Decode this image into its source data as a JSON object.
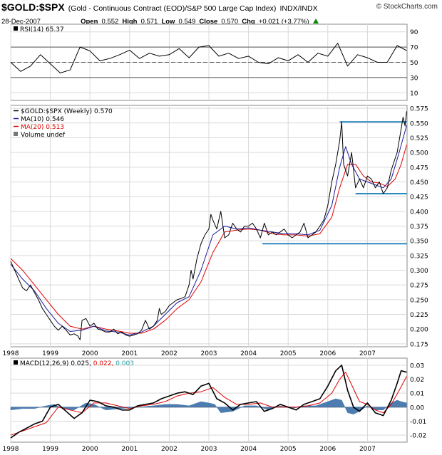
{
  "header": {
    "symbol": "$GOLD:$SPX",
    "description": "(Gold - Continuous Contract (EOD)/S&P 500 Large Cap Index)",
    "exchange": "INDX/INDX",
    "date": "28-Dec-2007",
    "open_label": "Open",
    "open": "0.552",
    "high_label": "High",
    "high": "0.571",
    "low_label": "Low",
    "low": "0.549",
    "close_label": "Close",
    "close": "0.570",
    "chg_label": "Chg",
    "chg": "+0.021 (+3.77%)",
    "watermark": "© StockCharts.com",
    "chg_arrow_color": "#0a8a0a"
  },
  "colors": {
    "price": "#000000",
    "ma10": "#1a1aa0",
    "ma20": "#e00000",
    "hline": "#2e8bc0",
    "histogram": "#3a6fa8",
    "macd_signal": "#e00000",
    "hist_text": "#2aa0a0",
    "grid": "#d9d9d9"
  },
  "chart_data": [
    {
      "type": "line",
      "panel": "rsi",
      "legend": "RSI(14) 65.37",
      "ylim": [
        0,
        100
      ],
      "ticks": [
        10,
        30,
        50,
        70,
        90
      ],
      "reference_lines": [
        30,
        50,
        70
      ],
      "series": [
        {
          "name": "RSI(14)",
          "last": 65.37,
          "x": [
            1998.0,
            1998.25,
            1998.5,
            1998.75,
            1999.0,
            1999.25,
            1999.5,
            1999.75,
            2000.0,
            2000.25,
            2000.5,
            2000.75,
            2001.0,
            2001.25,
            2001.5,
            2001.75,
            2002.0,
            2002.25,
            2002.5,
            2002.75,
            2003.0,
            2003.25,
            2003.5,
            2003.75,
            2004.0,
            2004.25,
            2004.5,
            2004.75,
            2005.0,
            2005.25,
            2005.5,
            2005.75,
            2006.0,
            2006.25,
            2006.5,
            2006.75,
            2007.0,
            2007.25,
            2007.5,
            2007.75,
            2007.99
          ],
          "values": [
            50,
            38,
            45,
            60,
            48,
            36,
            40,
            70,
            65,
            52,
            55,
            60,
            66,
            55,
            62,
            58,
            60,
            68,
            56,
            70,
            72,
            58,
            62,
            55,
            58,
            50,
            48,
            56,
            52,
            60,
            50,
            62,
            58,
            75,
            45,
            60,
            56,
            50,
            50,
            72,
            65.37
          ]
        }
      ]
    },
    {
      "type": "line",
      "panel": "price",
      "ylim": [
        0.17,
        0.58
      ],
      "ticks": [
        0.175,
        0.2,
        0.225,
        0.25,
        0.275,
        0.3,
        0.325,
        0.35,
        0.375,
        0.4,
        0.425,
        0.45,
        0.475,
        0.5,
        0.525,
        0.55,
        0.575
      ],
      "x_ticks": [
        "1998",
        "1999",
        "2000",
        "2001",
        "2002",
        "2003",
        "2004",
        "2005",
        "2006",
        "2007"
      ],
      "x_tick_positions": [
        1998,
        1999,
        2000,
        2001,
        2002,
        2003,
        2004,
        2005,
        2006,
        2007
      ],
      "xlim": [
        1998.0,
        2008.0
      ],
      "legend": [
        {
          "label": "$GOLD:$SPX (Weekly) 0.570",
          "color": "#000000"
        },
        {
          "label": "MA(10) 0.546",
          "color": "#1a1aa0"
        },
        {
          "label": "MA(20) 0.513",
          "color": "#e00000"
        },
        {
          "label": "Volume undef",
          "color": "#555555"
        }
      ],
      "horizontal_lines": [
        {
          "y": 0.552,
          "x_from": 2006.3,
          "x_to": 2008.0
        },
        {
          "y": 0.43,
          "x_from": 2006.7,
          "x_to": 2008.0
        },
        {
          "y": 0.345,
          "x_from": 2004.35,
          "x_to": 2008.0
        }
      ],
      "series": [
        {
          "name": "$GOLD:$SPX (Weekly)",
          "last": 0.57,
          "x": [
            1998.0,
            1998.1,
            1998.2,
            1998.3,
            1998.4,
            1998.5,
            1998.6,
            1998.7,
            1998.8,
            1998.9,
            1999.0,
            1999.1,
            1999.2,
            1999.3,
            1999.4,
            1999.5,
            1999.6,
            1999.7,
            1999.75,
            1999.8,
            1999.9,
            2000.0,
            2000.1,
            2000.2,
            2000.3,
            2000.4,
            2000.5,
            2000.6,
            2000.7,
            2000.8,
            2000.9,
            2001.0,
            2001.1,
            2001.2,
            2001.3,
            2001.4,
            2001.5,
            2001.6,
            2001.7,
            2001.75,
            2001.8,
            2001.9,
            2002.0,
            2002.1,
            2002.2,
            2002.3,
            2002.4,
            2002.5,
            2002.55,
            2002.6,
            2002.7,
            2002.8,
            2002.9,
            2003.0,
            2003.05,
            2003.1,
            2003.2,
            2003.3,
            2003.4,
            2003.5,
            2003.6,
            2003.7,
            2003.8,
            2003.9,
            2004.0,
            2004.1,
            2004.2,
            2004.3,
            2004.4,
            2004.5,
            2004.6,
            2004.7,
            2004.8,
            2004.9,
            2005.0,
            2005.1,
            2005.2,
            2005.3,
            2005.4,
            2005.5,
            2005.6,
            2005.7,
            2005.8,
            2005.9,
            2006.0,
            2006.1,
            2006.2,
            2006.3,
            2006.35,
            2006.4,
            2006.5,
            2006.6,
            2006.7,
            2006.8,
            2006.9,
            2007.0,
            2007.1,
            2007.2,
            2007.3,
            2007.4,
            2007.5,
            2007.6,
            2007.7,
            2007.75,
            2007.8,
            2007.85,
            2007.9,
            2007.95,
            2007.99
          ],
          "values": [
            0.315,
            0.3,
            0.285,
            0.27,
            0.265,
            0.275,
            0.262,
            0.25,
            0.235,
            0.225,
            0.215,
            0.205,
            0.198,
            0.205,
            0.198,
            0.19,
            0.192,
            0.188,
            0.182,
            0.215,
            0.218,
            0.205,
            0.21,
            0.2,
            0.198,
            0.195,
            0.195,
            0.2,
            0.192,
            0.195,
            0.19,
            0.188,
            0.19,
            0.192,
            0.198,
            0.215,
            0.2,
            0.205,
            0.215,
            0.235,
            0.225,
            0.23,
            0.24,
            0.245,
            0.25,
            0.252,
            0.255,
            0.275,
            0.3,
            0.285,
            0.32,
            0.345,
            0.36,
            0.37,
            0.395,
            0.385,
            0.37,
            0.4,
            0.355,
            0.36,
            0.38,
            0.37,
            0.365,
            0.375,
            0.375,
            0.38,
            0.37,
            0.355,
            0.38,
            0.36,
            0.365,
            0.36,
            0.365,
            0.37,
            0.36,
            0.355,
            0.36,
            0.365,
            0.38,
            0.355,
            0.36,
            0.365,
            0.375,
            0.385,
            0.41,
            0.45,
            0.48,
            0.52,
            0.552,
            0.48,
            0.46,
            0.5,
            0.44,
            0.455,
            0.44,
            0.46,
            0.455,
            0.44,
            0.45,
            0.43,
            0.44,
            0.47,
            0.49,
            0.5,
            0.52,
            0.54,
            0.56,
            0.545,
            0.57
          ]
        },
        {
          "name": "MA(10)",
          "last": 0.546,
          "x": [
            1998.0,
            1998.3,
            1998.6,
            1998.9,
            1999.2,
            1999.5,
            1999.8,
            2000.1,
            2000.4,
            2000.7,
            2001.0,
            2001.3,
            2001.6,
            2001.9,
            2002.2,
            2002.5,
            2002.8,
            2003.1,
            2003.4,
            2003.7,
            2004.0,
            2004.3,
            2004.6,
            2004.9,
            2005.2,
            2005.5,
            2005.8,
            2006.1,
            2006.3,
            2006.45,
            2006.6,
            2006.8,
            2007.0,
            2007.2,
            2007.4,
            2007.6,
            2007.8,
            2007.99
          ],
          "values": [
            0.31,
            0.285,
            0.265,
            0.235,
            0.21,
            0.196,
            0.198,
            0.205,
            0.197,
            0.195,
            0.19,
            0.195,
            0.205,
            0.225,
            0.245,
            0.255,
            0.3,
            0.36,
            0.375,
            0.37,
            0.372,
            0.368,
            0.365,
            0.362,
            0.362,
            0.36,
            0.368,
            0.41,
            0.475,
            0.51,
            0.48,
            0.455,
            0.45,
            0.445,
            0.44,
            0.455,
            0.5,
            0.546
          ]
        },
        {
          "name": "MA(20)",
          "last": 0.513,
          "x": [
            1998.0,
            1998.3,
            1998.6,
            1998.9,
            1999.2,
            1999.5,
            1999.8,
            2000.1,
            2000.4,
            2000.7,
            2001.0,
            2001.3,
            2001.6,
            2001.9,
            2002.2,
            2002.5,
            2002.8,
            2003.1,
            2003.4,
            2003.7,
            2004.0,
            2004.3,
            2004.6,
            2004.9,
            2005.2,
            2005.5,
            2005.8,
            2006.1,
            2006.3,
            2006.5,
            2006.7,
            2006.9,
            2007.1,
            2007.3,
            2007.5,
            2007.7,
            2007.85,
            2007.99
          ],
          "values": [
            0.32,
            0.3,
            0.275,
            0.25,
            0.225,
            0.205,
            0.2,
            0.205,
            0.2,
            0.197,
            0.193,
            0.193,
            0.2,
            0.215,
            0.235,
            0.25,
            0.28,
            0.33,
            0.365,
            0.368,
            0.37,
            0.368,
            0.362,
            0.36,
            0.36,
            0.358,
            0.362,
            0.39,
            0.44,
            0.48,
            0.48,
            0.46,
            0.45,
            0.448,
            0.442,
            0.455,
            0.48,
            0.513
          ]
        }
      ]
    },
    {
      "type": "line",
      "panel": "macd",
      "legend_name": "MACD(12,26,9)",
      "macd_value": "0.025,",
      "signal_value": "0.022,",
      "hist_value": "0.003",
      "ylim": [
        -0.025,
        0.035
      ],
      "ticks": [
        -0.02,
        -0.01,
        0.0,
        0.01,
        0.02,
        0.03
      ],
      "tick_labels": [
        "-0.02",
        "-0.01",
        "0.00",
        "0.01",
        "0.02",
        "0.03"
      ],
      "x_ticks": [
        "1998",
        "1999",
        "2000",
        "2001",
        "2002",
        "2003",
        "2004",
        "2005",
        "2006",
        "2007"
      ],
      "series": [
        {
          "name": "MACD",
          "last": 0.025,
          "x": [
            1998.0,
            1998.2,
            1998.4,
            1998.6,
            1998.8,
            1999.0,
            1999.2,
            1999.4,
            1999.6,
            1999.8,
            2000.0,
            2000.2,
            2000.4,
            2000.6,
            2000.8,
            2001.0,
            2001.2,
            2001.4,
            2001.6,
            2001.8,
            2002.0,
            2002.2,
            2002.4,
            2002.6,
            2002.8,
            2003.0,
            2003.2,
            2003.4,
            2003.6,
            2003.8,
            2004.0,
            2004.2,
            2004.4,
            2004.6,
            2004.8,
            2005.0,
            2005.2,
            2005.4,
            2005.6,
            2005.8,
            2006.0,
            2006.2,
            2006.35,
            2006.5,
            2006.65,
            2006.8,
            2007.0,
            2007.2,
            2007.4,
            2007.6,
            2007.75,
            2007.85,
            2007.99
          ],
          "values": [
            -0.022,
            -0.018,
            -0.015,
            -0.012,
            -0.01,
            0.0,
            0.002,
            -0.003,
            -0.008,
            -0.004,
            0.005,
            0.004,
            0.001,
            0.0,
            -0.002,
            -0.002,
            0.001,
            0.002,
            0.003,
            0.006,
            0.008,
            0.01,
            0.011,
            0.009,
            0.015,
            0.017,
            0.006,
            0.003,
            -0.002,
            0.002,
            0.003,
            0.004,
            -0.003,
            -0.001,
            0.002,
            0.0,
            -0.002,
            0.002,
            0.004,
            0.006,
            0.015,
            0.026,
            0.03,
            0.012,
            0.0,
            -0.003,
            0.003,
            -0.004,
            -0.006,
            0.005,
            0.017,
            0.026,
            0.025
          ]
        },
        {
          "name": "Signal",
          "last": 0.022,
          "x": [
            1998.0,
            1998.3,
            1998.6,
            1998.9,
            1999.2,
            1999.5,
            1999.8,
            2000.1,
            2000.4,
            2000.7,
            2001.0,
            2001.3,
            2001.6,
            2001.9,
            2002.2,
            2002.5,
            2002.8,
            2003.1,
            2003.4,
            2003.7,
            2004.0,
            2004.3,
            2004.6,
            2004.9,
            2005.2,
            2005.5,
            2005.8,
            2006.1,
            2006.3,
            2006.45,
            2006.6,
            2006.8,
            2007.0,
            2007.2,
            2007.4,
            2007.6,
            2007.8,
            2007.99
          ],
          "values": [
            -0.02,
            -0.017,
            -0.014,
            -0.011,
            0.0,
            -0.002,
            -0.004,
            0.003,
            0.003,
            0.001,
            -0.001,
            0.001,
            0.002,
            0.004,
            0.008,
            0.01,
            0.011,
            0.014,
            0.007,
            0.002,
            0.002,
            0.003,
            0.0,
            0.0,
            0.0,
            0.001,
            0.003,
            0.01,
            0.02,
            0.025,
            0.016,
            0.004,
            0.002,
            -0.002,
            -0.004,
            0.002,
            0.012,
            0.022
          ]
        },
        {
          "name": "Histogram",
          "last": 0.003,
          "x": [
            1998.0,
            1998.3,
            1998.6,
            1998.9,
            1999.1,
            1999.3,
            1999.6,
            1999.9,
            2000.1,
            2000.4,
            2000.8,
            2001.2,
            2001.6,
            2001.9,
            2002.2,
            2002.5,
            2002.8,
            2003.0,
            2003.15,
            2003.3,
            2003.6,
            2003.9,
            2004.2,
            2004.5,
            2004.8,
            2005.1,
            2005.4,
            2005.7,
            2006.0,
            2006.2,
            2006.35,
            2006.5,
            2006.65,
            2006.8,
            2007.0,
            2007.2,
            2007.4,
            2007.6,
            2007.75,
            2007.85,
            2007.99
          ],
          "values": [
            -0.002,
            -0.001,
            -0.001,
            0.001,
            0.002,
            -0.001,
            -0.002,
            0.003,
            0.002,
            -0.002,
            -0.001,
            0.0,
            0.001,
            0.002,
            0.002,
            0.001,
            0.004,
            0.003,
            0.002,
            -0.004,
            -0.003,
            0.001,
            0.001,
            -0.002,
            0.001,
            -0.001,
            0.001,
            0.001,
            0.004,
            0.006,
            0.005,
            -0.004,
            -0.005,
            -0.003,
            0.001,
            -0.002,
            -0.002,
            0.003,
            0.005,
            0.004,
            0.003
          ]
        }
      ]
    }
  ]
}
